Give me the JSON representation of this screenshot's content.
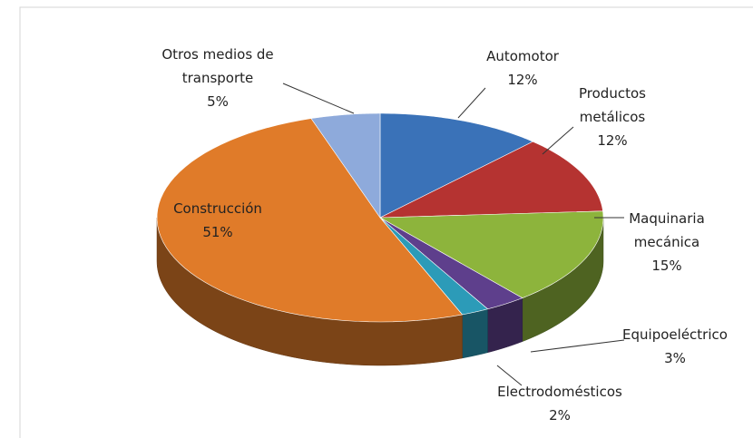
{
  "chart_data": {
    "type": "pie3d",
    "categories": [
      "Automotor",
      "Productos metálicos",
      "Maquinaria mecánica",
      "Equipoeléctrico",
      "Electrodomésticos",
      "Construcción",
      "Otros medios de transporte"
    ],
    "values": [
      12,
      12,
      15,
      3,
      2,
      51,
      5
    ],
    "value_labels": [
      "12%",
      "12%",
      "15%",
      "3%",
      "2%",
      "51%",
      "5%"
    ],
    "colors": [
      "#3a72b8",
      "#b53331",
      "#8db43c",
      "#5e3f8c",
      "#2c9bb8",
      "#e07b29",
      "#8eaadb"
    ]
  }
}
